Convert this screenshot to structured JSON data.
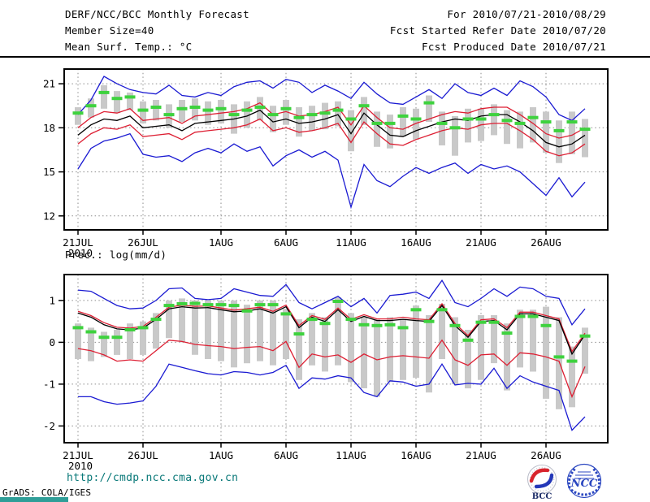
{
  "header": {
    "title": "DERF/NCC/BCC Monthly Forecast",
    "member_size": "Member Size=40",
    "for_range": "For 2010/07/21-2010/08/29",
    "fcst_started": "Fcst Started Refer Date 2010/07/20",
    "fcst_produced": "Fcst Produced Date 2010/07/21"
  },
  "footer": {
    "url": "http://cmdp.ncc.cma.gov.cn",
    "grads_credit": "GrADS: COLA/IGES",
    "logos": [
      {
        "name": "BCC",
        "label": "BCC"
      },
      {
        "name": "NCC",
        "label": "NCC"
      }
    ]
  },
  "colors": {
    "blue": "#1a1ad2",
    "red": "#dd1f33",
    "black": "#000000",
    "marker_green": "#3ed23e",
    "spread_bar": "#c9c9c9",
    "frame": "#000000",
    "url_teal": "#087878"
  },
  "chart_data": [
    {
      "type": "line",
      "name": "temperature",
      "title": "Mean Surf. Temp.: °C",
      "xlabel": "",
      "ylabel": "",
      "ylim": [
        11.05,
        22.0
      ],
      "yticks": [
        21,
        18,
        15,
        12
      ],
      "ytick_labels": [
        "21",
        "18",
        "15",
        "12"
      ],
      "grid": true,
      "legend": "none",
      "x_ticks": [
        {
          "day": 0,
          "label": "21JUL",
          "sub": "2010"
        },
        {
          "day": 5,
          "label": "26JUL"
        },
        {
          "day": 11,
          "label": "1AUG"
        },
        {
          "day": 16,
          "label": "6AUG"
        },
        {
          "day": 21,
          "label": "11AUG"
        },
        {
          "day": 26,
          "label": "16AUG"
        },
        {
          "day": 31,
          "label": "21AUG"
        },
        {
          "day": 36,
          "label": "26AUG"
        }
      ],
      "series": [
        {
          "name": "ensemble-max",
          "color": "blue",
          "values": [
            18.9,
            19.9,
            21.5,
            21.0,
            20.6,
            20.4,
            20.3,
            20.9,
            20.2,
            20.1,
            20.4,
            20.2,
            20.8,
            21.1,
            21.2,
            20.7,
            21.3,
            21.1,
            20.4,
            20.9,
            20.5,
            20.0,
            21.1,
            20.3,
            19.7,
            19.6,
            20.1,
            20.6,
            20.0,
            21.0,
            20.4,
            20.2,
            20.7,
            20.2,
            21.2,
            20.8,
            20.1,
            18.9,
            18.5,
            19.3
          ]
        },
        {
          "name": "upper-bound",
          "color": "red",
          "values": [
            18.0,
            18.7,
            19.1,
            19.0,
            19.3,
            18.5,
            18.6,
            18.7,
            18.3,
            18.8,
            18.9,
            19.0,
            19.1,
            19.3,
            19.7,
            18.9,
            19.1,
            18.8,
            18.9,
            19.1,
            19.4,
            18.2,
            19.5,
            18.7,
            18.0,
            17.9,
            18.3,
            18.6,
            18.9,
            19.1,
            19.0,
            19.3,
            19.4,
            19.4,
            18.9,
            18.3,
            17.6,
            17.3,
            17.5,
            18.0
          ]
        },
        {
          "name": "ensemble-mean",
          "color": "black",
          "values": [
            17.5,
            18.2,
            18.6,
            18.5,
            18.8,
            18.0,
            18.1,
            18.2,
            17.8,
            18.3,
            18.4,
            18.5,
            18.6,
            18.8,
            19.2,
            18.4,
            18.6,
            18.3,
            18.4,
            18.6,
            18.9,
            17.6,
            19.0,
            18.2,
            17.5,
            17.4,
            17.8,
            18.1,
            18.4,
            18.6,
            18.5,
            18.8,
            18.9,
            18.9,
            18.4,
            17.8,
            17.0,
            16.7,
            16.9,
            17.5
          ]
        },
        {
          "name": "lower-bound",
          "color": "red",
          "values": [
            16.9,
            17.6,
            18.0,
            17.9,
            18.2,
            17.4,
            17.5,
            17.6,
            17.2,
            17.7,
            17.8,
            17.9,
            18.0,
            18.2,
            18.6,
            17.8,
            18.0,
            17.7,
            17.8,
            18.0,
            18.3,
            17.0,
            18.4,
            17.6,
            16.9,
            16.8,
            17.2,
            17.5,
            17.8,
            18.0,
            17.9,
            18.2,
            18.3,
            18.3,
            17.8,
            17.2,
            16.4,
            16.1,
            16.3,
            16.9
          ]
        },
        {
          "name": "ensemble-min",
          "color": "blue",
          "values": [
            15.2,
            16.6,
            17.1,
            17.3,
            17.6,
            16.2,
            16.0,
            16.1,
            15.7,
            16.3,
            16.6,
            16.3,
            16.9,
            16.4,
            16.7,
            15.4,
            16.1,
            16.5,
            16.0,
            16.4,
            15.8,
            12.6,
            15.5,
            14.4,
            14.0,
            14.7,
            15.3,
            14.9,
            15.3,
            15.6,
            14.9,
            15.5,
            15.2,
            15.4,
            15.0,
            14.2,
            13.4,
            14.6,
            13.3,
            14.3
          ]
        }
      ],
      "markers": {
        "name": "green-dash-median",
        "values": [
          19.0,
          19.5,
          20.4,
          20.0,
          20.1,
          19.2,
          19.4,
          18.9,
          19.3,
          19.4,
          19.2,
          19.3,
          18.9,
          19.2,
          19.4,
          18.9,
          19.3,
          18.7,
          18.9,
          19.0,
          19.2,
          18.6,
          19.5,
          18.3,
          18.3,
          18.8,
          18.6,
          19.7,
          18.3,
          18.0,
          18.6,
          18.6,
          18.9,
          18.5,
          18.3,
          18.7,
          18.4,
          17.8,
          18.4,
          17.9
        ]
      },
      "bars": {
        "name": "ensemble-spread-bar",
        "hi": [
          19.4,
          20.0,
          20.9,
          20.5,
          20.4,
          19.8,
          19.9,
          19.6,
          19.9,
          20.0,
          19.8,
          19.9,
          19.6,
          19.8,
          20.1,
          19.5,
          19.9,
          19.4,
          19.5,
          19.7,
          19.8,
          19.2,
          20.1,
          19.1,
          18.9,
          19.4,
          19.3,
          20.2,
          19.1,
          18.8,
          19.3,
          19.3,
          19.6,
          19.2,
          19.1,
          19.4,
          19.1,
          18.5,
          19.1,
          18.6
        ],
        "lo": [
          18.2,
          18.7,
          19.3,
          19.0,
          19.2,
          18.3,
          18.5,
          18.0,
          18.4,
          18.5,
          18.2,
          18.3,
          17.6,
          18.0,
          18.5,
          17.7,
          18.2,
          17.4,
          17.8,
          17.9,
          18.1,
          16.4,
          18.2,
          16.7,
          16.6,
          17.4,
          17.2,
          18.4,
          16.8,
          16.1,
          17.0,
          17.1,
          17.5,
          16.9,
          16.6,
          17.0,
          16.3,
          15.6,
          16.2,
          16.0
        ]
      }
    },
    {
      "type": "line",
      "name": "precipitation",
      "title": "Prec.: log(mm/d)",
      "xlabel": "",
      "ylabel": "",
      "ylim": [
        -2.4,
        1.62
      ],
      "yticks": [
        1,
        0,
        -1,
        -2
      ],
      "ytick_labels": [
        "1",
        "0",
        "-1",
        "-2"
      ],
      "grid": true,
      "legend": "none",
      "x_ticks": [
        {
          "day": 0,
          "label": "21JUL",
          "sub": "2010"
        },
        {
          "day": 5,
          "label": "26JUL"
        },
        {
          "day": 11,
          "label": "1AUG"
        },
        {
          "day": 16,
          "label": "6AUG"
        },
        {
          "day": 21,
          "label": "11AUG"
        },
        {
          "day": 26,
          "label": "16AUG"
        },
        {
          "day": 31,
          "label": "21AUG"
        },
        {
          "day": 36,
          "label": "26AUG"
        }
      ],
      "series": [
        {
          "name": "ensemble-max",
          "color": "blue",
          "values": [
            1.25,
            1.22,
            1.05,
            0.88,
            0.8,
            0.82,
            1.0,
            1.28,
            1.3,
            1.05,
            1.02,
            1.05,
            1.28,
            1.2,
            1.12,
            1.1,
            1.38,
            0.95,
            0.8,
            0.95,
            1.1,
            0.85,
            1.05,
            0.7,
            1.12,
            1.15,
            1.2,
            1.05,
            1.48,
            0.95,
            0.85,
            1.05,
            1.28,
            1.1,
            1.32,
            1.28,
            1.1,
            1.05,
            0.42,
            0.8
          ]
        },
        {
          "name": "upper-bound",
          "color": "red",
          "values": [
            0.74,
            0.64,
            0.47,
            0.36,
            0.34,
            0.38,
            0.6,
            0.84,
            0.89,
            0.86,
            0.87,
            0.82,
            0.77,
            0.8,
            0.84,
            0.74,
            0.89,
            0.4,
            0.64,
            0.55,
            0.82,
            0.55,
            0.66,
            0.56,
            0.56,
            0.6,
            0.56,
            0.54,
            0.92,
            0.45,
            0.16,
            0.54,
            0.56,
            0.35,
            0.72,
            0.72,
            0.64,
            0.56,
            -0.22,
            0.22
          ]
        },
        {
          "name": "ensemble-mean",
          "color": "black",
          "values": [
            0.7,
            0.6,
            0.42,
            0.32,
            0.3,
            0.34,
            0.55,
            0.8,
            0.85,
            0.82,
            0.83,
            0.78,
            0.73,
            0.75,
            0.8,
            0.7,
            0.85,
            0.35,
            0.6,
            0.5,
            0.78,
            0.5,
            0.62,
            0.52,
            0.52,
            0.55,
            0.52,
            0.5,
            0.88,
            0.4,
            0.12,
            0.5,
            0.52,
            0.3,
            0.68,
            0.68,
            0.6,
            0.52,
            -0.28,
            0.18
          ]
        },
        {
          "name": "lower-bound",
          "color": "red",
          "values": [
            -0.15,
            -0.2,
            -0.3,
            -0.45,
            -0.42,
            -0.45,
            -0.2,
            0.05,
            0.02,
            -0.05,
            -0.08,
            -0.1,
            -0.15,
            -0.12,
            -0.1,
            -0.2,
            0.02,
            -0.6,
            -0.28,
            -0.35,
            -0.3,
            -0.48,
            -0.28,
            -0.42,
            -0.35,
            -0.32,
            -0.35,
            -0.38,
            0.05,
            -0.42,
            -0.55,
            -0.3,
            -0.28,
            -0.55,
            -0.25,
            -0.28,
            -0.35,
            -0.45,
            -1.3,
            -0.58
          ]
        },
        {
          "name": "ensemble-min",
          "color": "blue",
          "values": [
            -1.3,
            -1.3,
            -1.42,
            -1.48,
            -1.45,
            -1.4,
            -1.05,
            -0.52,
            -0.6,
            -0.68,
            -0.75,
            -0.78,
            -0.7,
            -0.72,
            -0.78,
            -0.72,
            -0.55,
            -1.1,
            -0.85,
            -0.88,
            -0.8,
            -0.85,
            -1.2,
            -1.3,
            -0.92,
            -0.95,
            -1.05,
            -1.0,
            -0.52,
            -1.02,
            -0.98,
            -1.0,
            -0.62,
            -1.1,
            -0.8,
            -0.95,
            -1.05,
            -1.15,
            -2.1,
            -1.78
          ]
        }
      ],
      "markers": {
        "name": "green-dash-median",
        "values": [
          0.35,
          0.25,
          0.12,
          0.12,
          0.3,
          0.35,
          0.55,
          0.88,
          0.92,
          0.93,
          0.9,
          0.9,
          0.88,
          0.75,
          0.9,
          0.9,
          0.68,
          0.2,
          0.55,
          0.45,
          0.98,
          0.55,
          0.42,
          0.4,
          0.42,
          0.35,
          0.78,
          0.5,
          0.78,
          0.4,
          0.05,
          0.48,
          0.48,
          0.22,
          0.62,
          0.62,
          0.4,
          -0.35,
          -0.45,
          0.15
        ]
      },
      "bars": {
        "name": "ensemble-spread-bar",
        "hi": [
          0.45,
          0.35,
          0.25,
          0.3,
          0.45,
          0.5,
          0.7,
          1.0,
          1.05,
          1.0,
          1.0,
          1.0,
          1.0,
          0.9,
          1.0,
          1.0,
          0.8,
          0.55,
          0.7,
          0.6,
          1.08,
          0.7,
          0.6,
          0.55,
          0.6,
          0.55,
          0.88,
          0.65,
          0.92,
          0.6,
          0.3,
          0.65,
          0.65,
          0.45,
          0.78,
          0.78,
          0.85,
          0.6,
          -0.1,
          0.35
        ],
        "lo": [
          -0.4,
          -0.45,
          -0.35,
          -0.3,
          -0.4,
          -0.3,
          -0.15,
          0.1,
          0.0,
          -0.3,
          -0.4,
          -0.45,
          -0.6,
          -0.5,
          -0.45,
          -0.55,
          -0.4,
          -0.9,
          -0.55,
          -0.7,
          -0.55,
          -0.95,
          -1.1,
          -1.3,
          -0.95,
          -0.9,
          -0.85,
          -1.2,
          -0.4,
          -1.0,
          -1.1,
          -0.9,
          -0.5,
          -1.15,
          -0.6,
          -0.7,
          -1.35,
          -1.6,
          -1.55,
          -0.75
        ]
      }
    }
  ]
}
